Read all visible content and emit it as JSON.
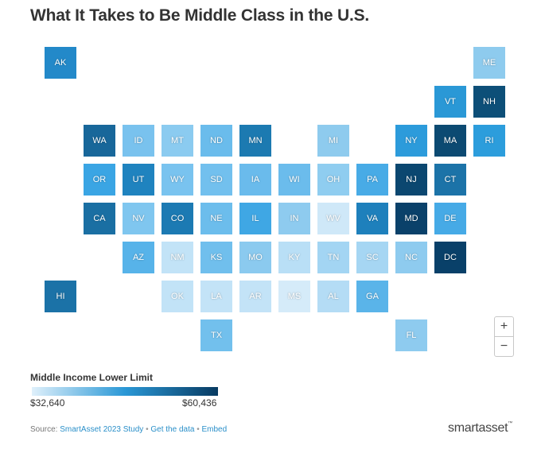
{
  "title": "What It Takes to Be Middle Class in the U.S.",
  "map": {
    "tiles": [
      {
        "abbr": "AK",
        "color": "#2389c9"
      },
      {
        "abbr": "ME",
        "color": "#8ecbee"
      },
      {
        "abbr": "VT",
        "color": "#2a98d6"
      },
      {
        "abbr": "NH",
        "color": "#0d4f78"
      },
      {
        "abbr": "WA",
        "color": "#18679a"
      },
      {
        "abbr": "ID",
        "color": "#79c2ee"
      },
      {
        "abbr": "MT",
        "color": "#8bcbf0"
      },
      {
        "abbr": "ND",
        "color": "#6abcec"
      },
      {
        "abbr": "MN",
        "color": "#1c7ab1"
      },
      {
        "abbr": "MI",
        "color": "#8ecbee"
      },
      {
        "abbr": "NY",
        "color": "#2c9bdb"
      },
      {
        "abbr": "MA",
        "color": "#0c4a72"
      },
      {
        "abbr": "RI",
        "color": "#2c9ddc"
      },
      {
        "abbr": "OR",
        "color": "#3aa5e4"
      },
      {
        "abbr": "UT",
        "color": "#1f83bf"
      },
      {
        "abbr": "WY",
        "color": "#79c3ef"
      },
      {
        "abbr": "SD",
        "color": "#72c0ee"
      },
      {
        "abbr": "IA",
        "color": "#6abbec"
      },
      {
        "abbr": "WI",
        "color": "#6bbcec"
      },
      {
        "abbr": "OH",
        "color": "#8fcdf0"
      },
      {
        "abbr": "PA",
        "color": "#48abe6"
      },
      {
        "abbr": "NJ",
        "color": "#0b4770"
      },
      {
        "abbr": "CT",
        "color": "#1c73a8"
      },
      {
        "abbr": "CA",
        "color": "#1a6fa3"
      },
      {
        "abbr": "NV",
        "color": "#7fc6ef"
      },
      {
        "abbr": "CO",
        "color": "#1c7ab3"
      },
      {
        "abbr": "NE",
        "color": "#6cbdec"
      },
      {
        "abbr": "IL",
        "color": "#3fa7e4"
      },
      {
        "abbr": "IN",
        "color": "#8ecbef"
      },
      {
        "abbr": "WV",
        "color": "#cfe8f8"
      },
      {
        "abbr": "VA",
        "color": "#1e80bc"
      },
      {
        "abbr": "MD",
        "color": "#0a416a"
      },
      {
        "abbr": "DE",
        "color": "#46aae6"
      },
      {
        "abbr": "AZ",
        "color": "#57b3e9"
      },
      {
        "abbr": "NM",
        "color": "#c2e3f7"
      },
      {
        "abbr": "KS",
        "color": "#70bfed"
      },
      {
        "abbr": "MO",
        "color": "#8bcaef"
      },
      {
        "abbr": "KY",
        "color": "#b9dff6"
      },
      {
        "abbr": "TN",
        "color": "#a3d5f3"
      },
      {
        "abbr": "SC",
        "color": "#a6d6f3"
      },
      {
        "abbr": "NC",
        "color": "#8ecbef"
      },
      {
        "abbr": "DC",
        "color": "#094069"
      },
      {
        "abbr": "HI",
        "color": "#1b72a7"
      },
      {
        "abbr": "OK",
        "color": "#c2e3f7"
      },
      {
        "abbr": "LA",
        "color": "#c3e3f7"
      },
      {
        "abbr": "AR",
        "color": "#c3e3f7"
      },
      {
        "abbr": "MS",
        "color": "#d5ebf9"
      },
      {
        "abbr": "AL",
        "color": "#b4dcf5"
      },
      {
        "abbr": "GA",
        "color": "#5ab4e9"
      },
      {
        "abbr": "TX",
        "color": "#72c0ed"
      },
      {
        "abbr": "FL",
        "color": "#8ecbef"
      }
    ]
  },
  "zoom": {
    "in_label": "+",
    "out_label": "−"
  },
  "legend": {
    "title": "Middle Income Lower Limit",
    "min_label": "$32,640",
    "max_label": "$60,436",
    "color_min": "#dff0fb",
    "color_mid": "#2a98d6",
    "color_max": "#083a61"
  },
  "source": {
    "prefix": "Source: ",
    "link1": "SmartAsset 2023 Study",
    "sep": " • ",
    "link2": "Get the data",
    "link3": "Embed"
  },
  "logo": {
    "text": "smartasset",
    "tm": "™"
  }
}
